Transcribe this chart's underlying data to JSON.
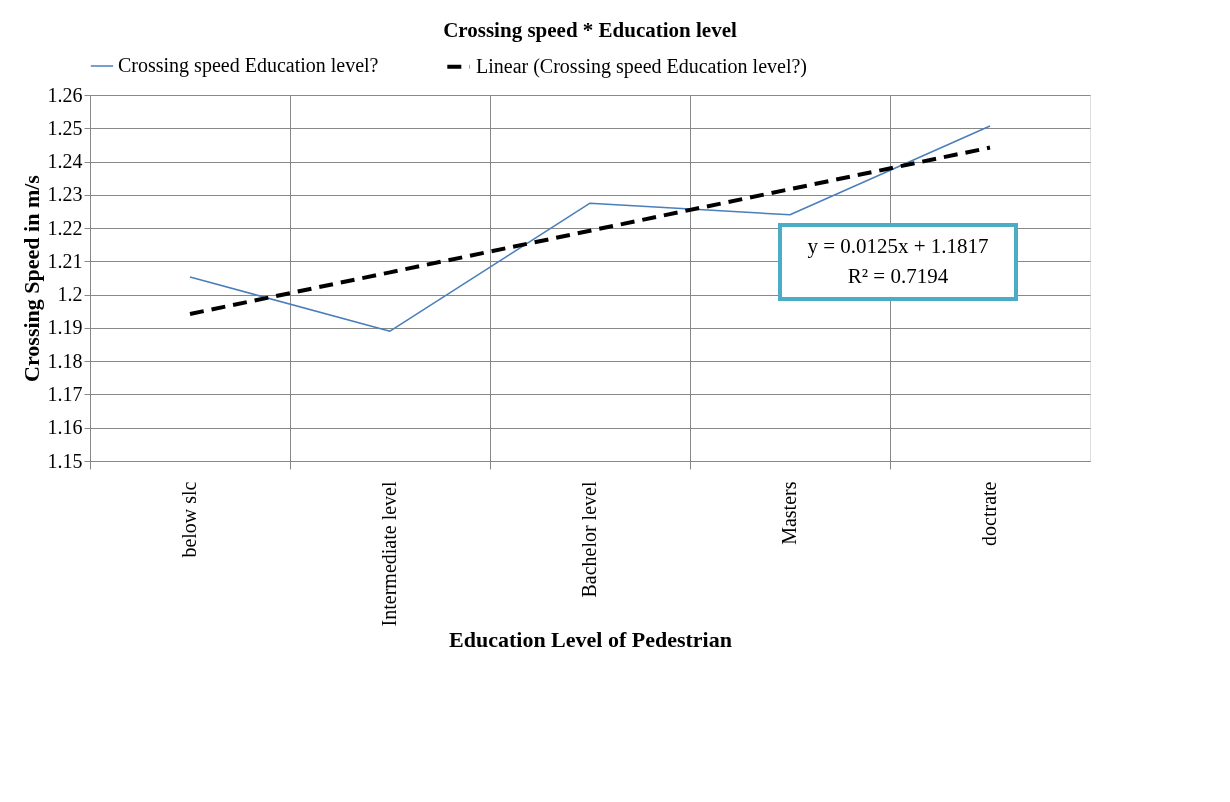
{
  "chart_data": {
    "type": "line",
    "title": "Crossing speed * Education level",
    "xlabel": "Education Level of Pedestrian",
    "ylabel": "Crossing Speed in m/s",
    "categories": [
      "below slc",
      "Intermediate level",
      "Bachelor level",
      "Masters",
      "doctrate"
    ],
    "series": [
      {
        "name": "Crossing speed Education level?",
        "color": "#4a7ebb",
        "line_style": "solid",
        "values": [
          1.2053,
          1.189,
          1.2275,
          1.224,
          1.2507
        ]
      },
      {
        "name": "Linear (Crossing speed Education level?)",
        "color": "#000000",
        "line_style": "dashed",
        "values": [
          1.1942,
          1.2067,
          1.2192,
          1.2317,
          1.2442
        ]
      }
    ],
    "ylim": [
      1.15,
      1.26
    ],
    "yticks": [
      1.15,
      1.16,
      1.17,
      1.18,
      1.19,
      1.2,
      1.21,
      1.22,
      1.23,
      1.24,
      1.25,
      1.26
    ],
    "grid": true,
    "legend": "top",
    "marker": "none",
    "annotations": [
      "y = 0.0125x + 1.1817",
      "R² = 0.7194"
    ]
  }
}
